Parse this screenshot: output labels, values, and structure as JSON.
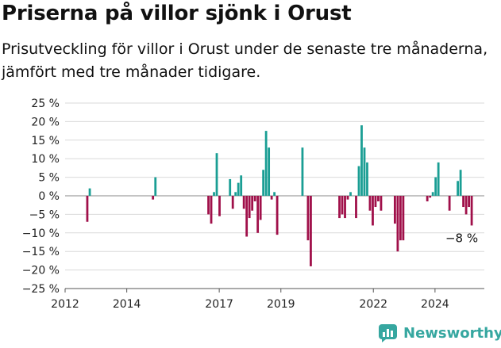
{
  "title": "Priserna på villor sjönk i Orust",
  "subtitle": "Prisutveckling för villor i Orust under de senaste tre månaderna, jämfört med tre månader tidigare.",
  "brand": "Newsworthy",
  "colors": {
    "positive": "#1a9e94",
    "negative": "#a0104a",
    "brand": "#36a7a0"
  },
  "chart_data": {
    "type": "bar",
    "title": "Priserna på villor sjönk i Orust",
    "xlabel": "",
    "ylabel": "",
    "ylim": [
      -25,
      25
    ],
    "xlim": [
      2012,
      2025.6
    ],
    "y_ticks": [
      "25 %",
      "20 %",
      "15 %",
      "10 %",
      "5 %",
      "0 %",
      "−5 %",
      "−10 %",
      "−15 %",
      "−20 %",
      "−25 %"
    ],
    "x_ticks": [
      "2012",
      "2014",
      "2017",
      "2019",
      "2022",
      "2024"
    ],
    "annotation": "−8 %",
    "grid": true,
    "values": [
      {
        "x": 2012.72,
        "y": -7.0
      },
      {
        "x": 2012.8,
        "y": 2.0
      },
      {
        "x": 2014.85,
        "y": -1.0
      },
      {
        "x": 2014.93,
        "y": 5.0
      },
      {
        "x": 2016.65,
        "y": -5.0
      },
      {
        "x": 2016.74,
        "y": -7.5
      },
      {
        "x": 2016.83,
        "y": 1.0
      },
      {
        "x": 2016.92,
        "y": 11.5
      },
      {
        "x": 2017.01,
        "y": -5.5
      },
      {
        "x": 2017.35,
        "y": 4.5
      },
      {
        "x": 2017.44,
        "y": -3.5
      },
      {
        "x": 2017.53,
        "y": 1.0
      },
      {
        "x": 2017.62,
        "y": 3.5
      },
      {
        "x": 2017.71,
        "y": 5.5
      },
      {
        "x": 2017.8,
        "y": -3.5
      },
      {
        "x": 2017.89,
        "y": -11.0
      },
      {
        "x": 2017.98,
        "y": -6.0
      },
      {
        "x": 2018.07,
        "y": -4.0
      },
      {
        "x": 2018.16,
        "y": -1.5
      },
      {
        "x": 2018.25,
        "y": -10.0
      },
      {
        "x": 2018.34,
        "y": -6.5
      },
      {
        "x": 2018.43,
        "y": 7.0
      },
      {
        "x": 2018.52,
        "y": 17.5
      },
      {
        "x": 2018.61,
        "y": 13.0
      },
      {
        "x": 2018.7,
        "y": -1.0
      },
      {
        "x": 2018.79,
        "y": 1.0
      },
      {
        "x": 2018.88,
        "y": -10.5
      },
      {
        "x": 2019.7,
        "y": 13.0
      },
      {
        "x": 2019.88,
        "y": -12.0
      },
      {
        "x": 2019.97,
        "y": -19.0
      },
      {
        "x": 2020.9,
        "y": -6.0
      },
      {
        "x": 2020.99,
        "y": -5.0
      },
      {
        "x": 2021.08,
        "y": -6.0
      },
      {
        "x": 2021.17,
        "y": -1.0
      },
      {
        "x": 2021.26,
        "y": 1.0
      },
      {
        "x": 2021.44,
        "y": -6.0
      },
      {
        "x": 2021.53,
        "y": 8.0
      },
      {
        "x": 2021.62,
        "y": 19.0
      },
      {
        "x": 2021.71,
        "y": 13.0
      },
      {
        "x": 2021.8,
        "y": 9.0
      },
      {
        "x": 2021.89,
        "y": -4.0
      },
      {
        "x": 2021.98,
        "y": -8.0
      },
      {
        "x": 2022.07,
        "y": -3.0
      },
      {
        "x": 2022.16,
        "y": -1.5
      },
      {
        "x": 2022.25,
        "y": -4.0
      },
      {
        "x": 2022.7,
        "y": -7.5
      },
      {
        "x": 2022.79,
        "y": -15.0
      },
      {
        "x": 2022.88,
        "y": -12.0
      },
      {
        "x": 2022.97,
        "y": -12.0
      },
      {
        "x": 2023.75,
        "y": -1.5
      },
      {
        "x": 2023.84,
        "y": -0.5
      },
      {
        "x": 2023.93,
        "y": 1.0
      },
      {
        "x": 2024.02,
        "y": 5.0
      },
      {
        "x": 2024.11,
        "y": 9.0
      },
      {
        "x": 2024.47,
        "y": -4.0
      },
      {
        "x": 2024.74,
        "y": 4.0
      },
      {
        "x": 2024.83,
        "y": 7.0
      },
      {
        "x": 2024.92,
        "y": -3.0
      },
      {
        "x": 2025.01,
        "y": -5.0
      },
      {
        "x": 2025.1,
        "y": -3.0
      },
      {
        "x": 2025.19,
        "y": -8.0
      }
    ]
  }
}
